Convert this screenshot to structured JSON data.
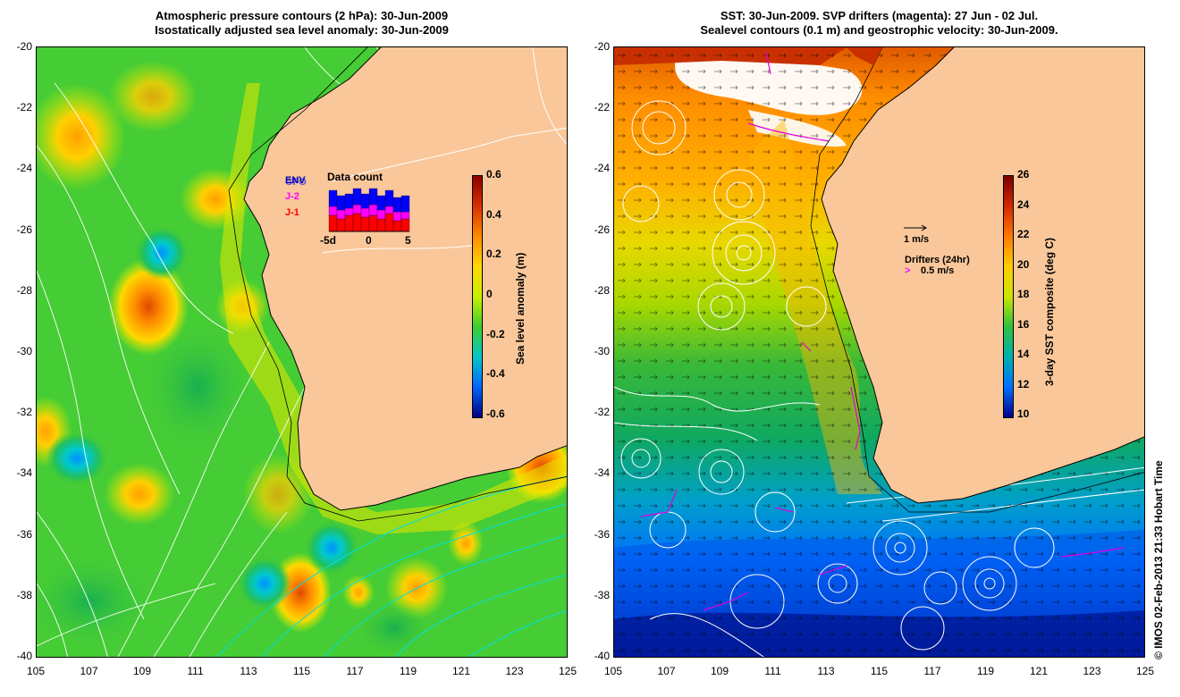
{
  "left": {
    "title_line1": "Atmospheric pressure contours (2 hPa): 30-Jun-2009",
    "title_line2": "Isostatically adjusted sea level anomaly: 30-Jun-2009",
    "colorbar": {
      "label": "Sea level anomaly (m)",
      "ticks": [
        "0.6",
        "0.4",
        "0.2",
        "0",
        "-0.2",
        "-0.4",
        "-0.6"
      ],
      "colors": [
        "#8b0000",
        "#d73000",
        "#ff8c00",
        "#ffd700",
        "#c8f000",
        "#3ccf2e",
        "#00c8c8",
        "#0064ff",
        "#000080"
      ]
    },
    "data_count": {
      "title": "Data count",
      "legend": [
        "ENV",
        "GFO",
        "J-2",
        "J-1"
      ],
      "legend_colors": [
        "#0000aa",
        "#0000ff",
        "#ff00ff",
        "#ff0000"
      ],
      "axis": [
        "-5d",
        "0",
        "5"
      ]
    }
  },
  "right": {
    "title_line1": "SST: 30-Jun-2009. SVP drifters (magenta): 27 Jun - 02 Jul.",
    "title_line2": "Sealevel contours (0.1 m) and geostrophic velocity: 30-Jun-2009.",
    "colorbar": {
      "label": "3-day SST composite (deg C)",
      "ticks": [
        "26",
        "24",
        "22",
        "20",
        "18",
        "16",
        "14",
        "12",
        "10"
      ],
      "colors": [
        "#7a0000",
        "#d22800",
        "#ff7a00",
        "#ffcc00",
        "#c8e600",
        "#30c040",
        "#00b0b0",
        "#0070ff",
        "#000088"
      ]
    },
    "vector_key": "1 m/s",
    "drifter_key_title": "Drifters (24hr)",
    "drifter_key_value": "0.5 m/s"
  },
  "axes": {
    "lat_ticks": [
      "-20",
      "-22",
      "-24",
      "-26",
      "-28",
      "-30",
      "-32",
      "-34",
      "-36",
      "-38",
      "-40"
    ],
    "lon_ticks": [
      "105",
      "107",
      "109",
      "111",
      "113",
      "115",
      "117",
      "119",
      "121",
      "123",
      "125"
    ]
  },
  "credit": "© IMOS 02-Feb-2013 21:33 Hobart Time",
  "colors": {
    "land": "#f9c79a",
    "ocean_green": "#3cc83c"
  }
}
